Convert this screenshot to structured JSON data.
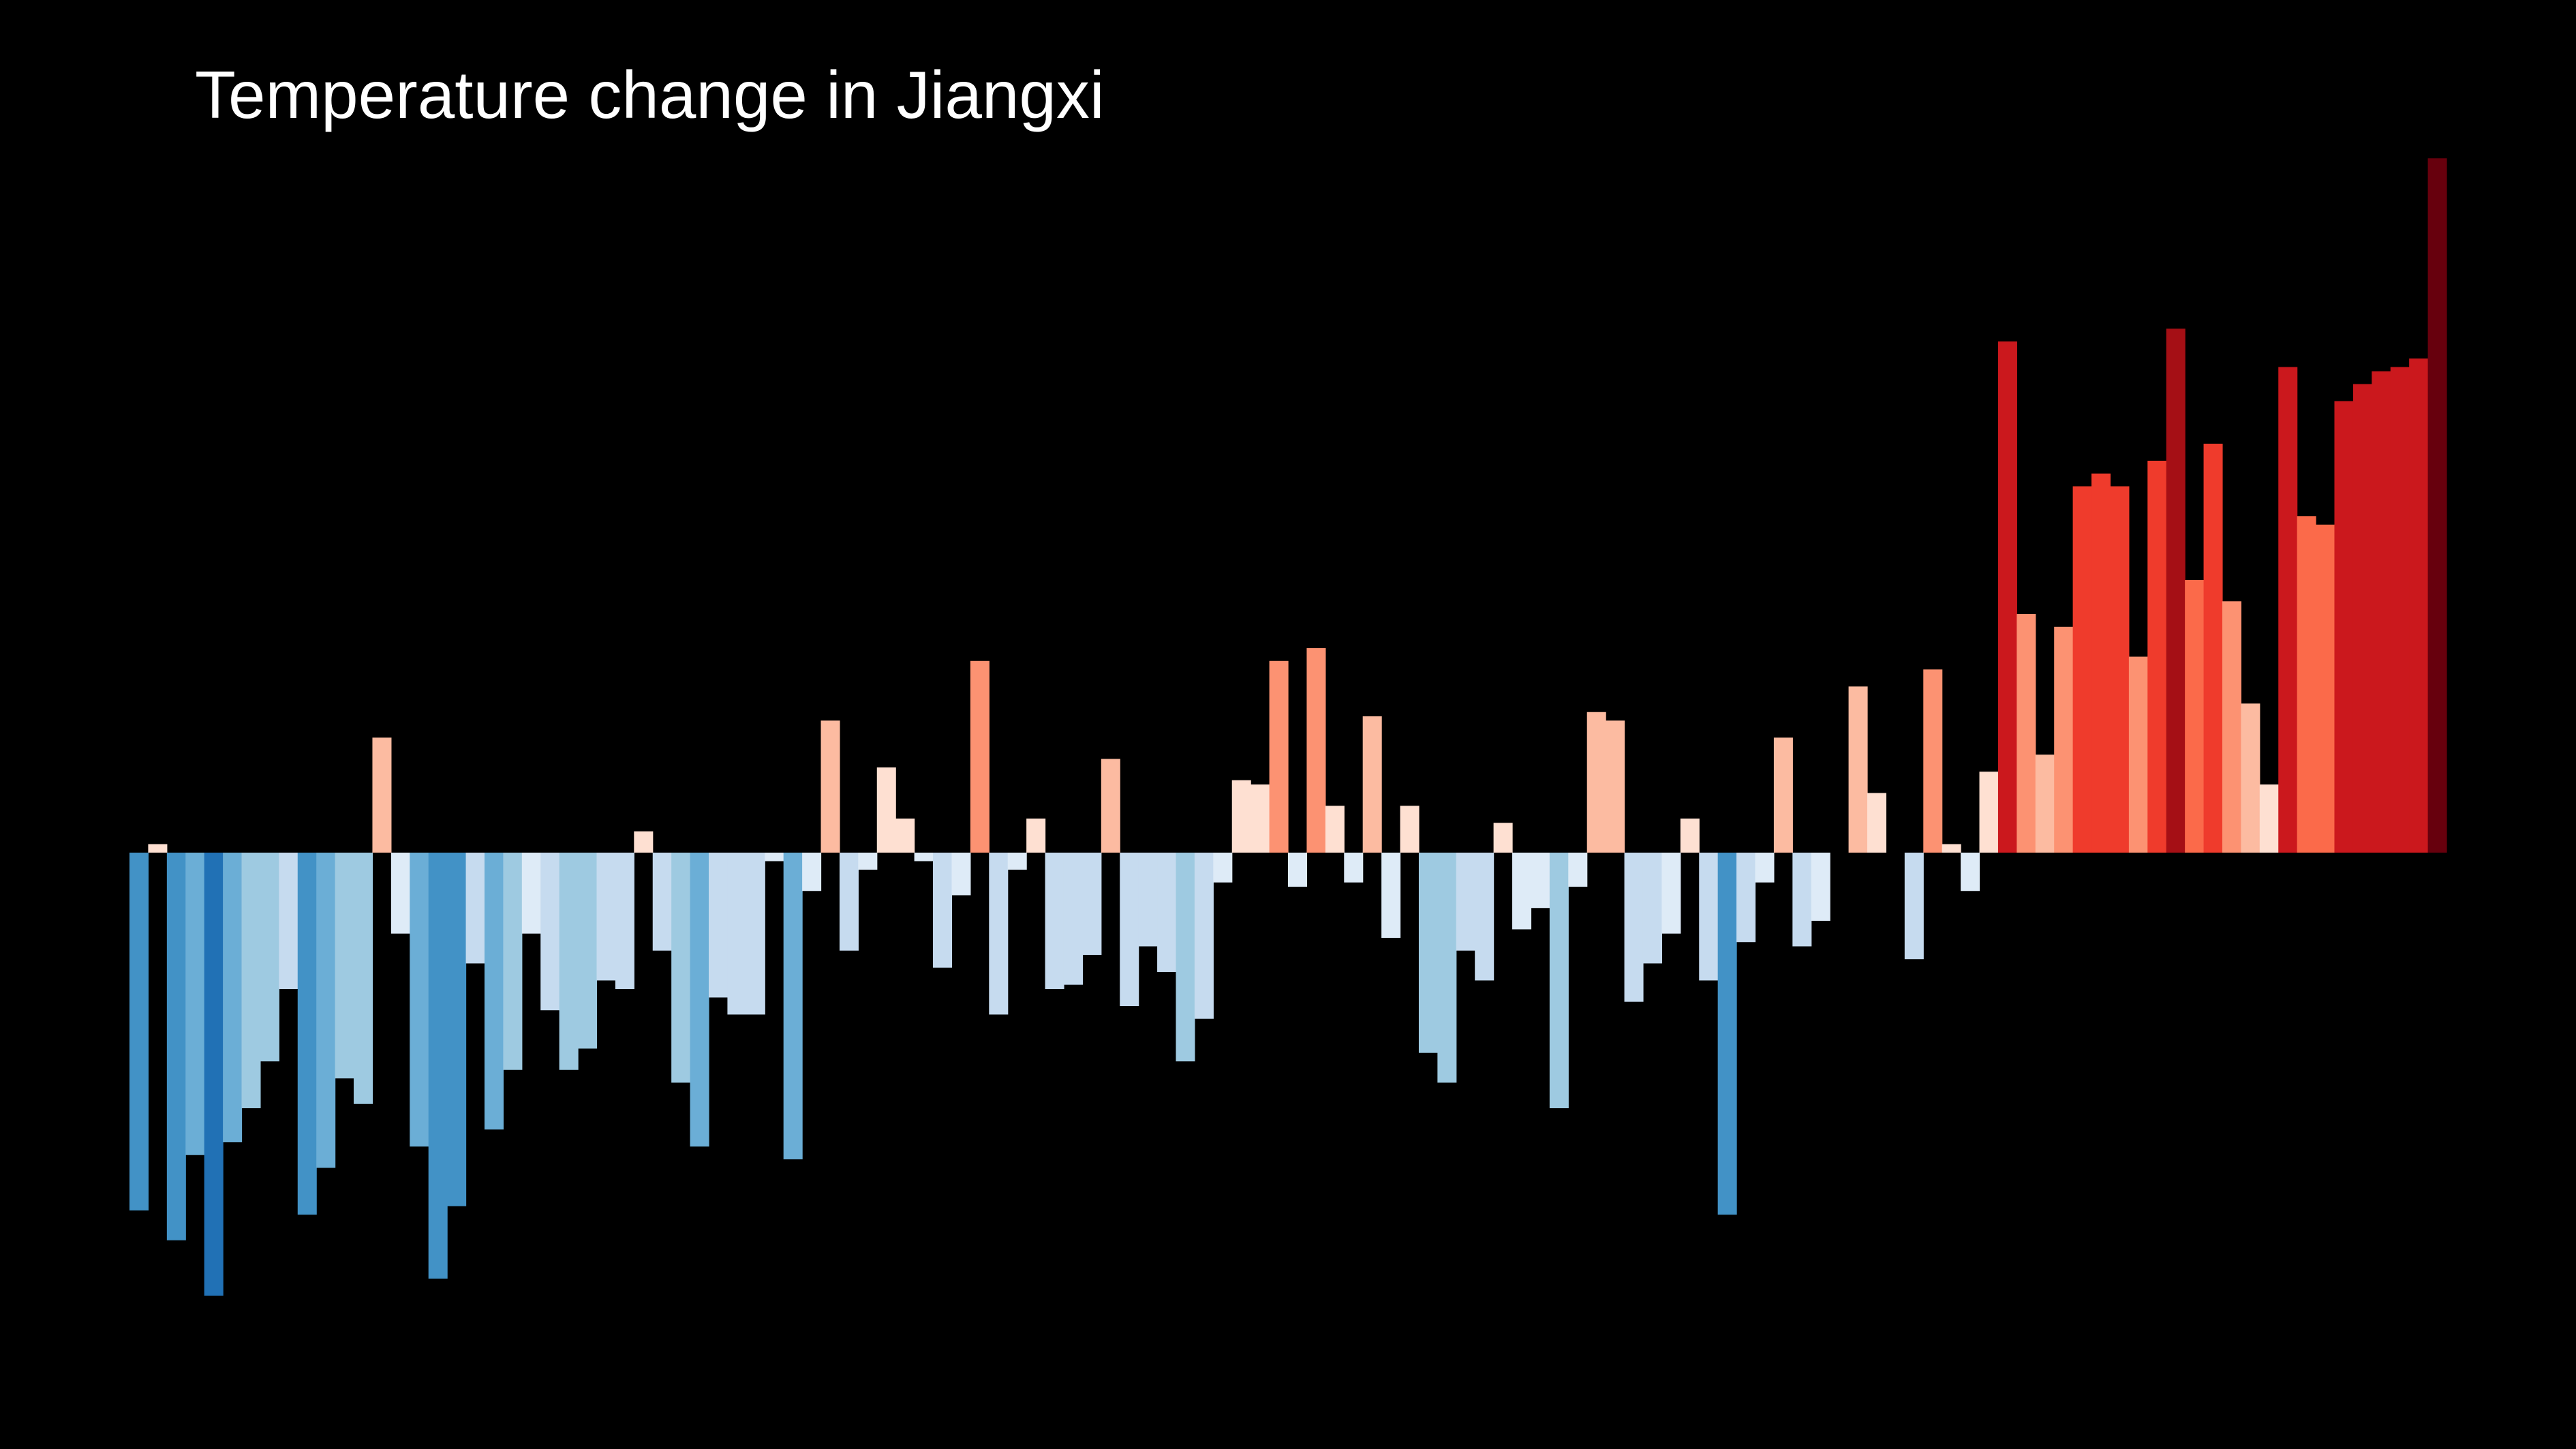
{
  "chart_data": {
    "type": "bar",
    "title": "Temperature change in Jiangxi",
    "xlabel": "",
    "ylabel": "",
    "values": [
      -0.84,
      0.02,
      -0.91,
      -0.71,
      -1.04,
      -0.68,
      -0.6,
      -0.49,
      -0.32,
      -0.85,
      -0.74,
      -0.53,
      -0.59,
      0.27,
      -0.19,
      -0.69,
      -1.0,
      -0.83,
      -0.26,
      -0.65,
      -0.51,
      -0.19,
      -0.37,
      -0.51,
      -0.46,
      -0.3,
      -0.32,
      0.05,
      -0.23,
      -0.54,
      -0.69,
      -0.34,
      -0.38,
      -0.38,
      -0.02,
      -0.72,
      -0.09,
      0.31,
      -0.23,
      -0.04,
      0.2,
      0.08,
      -0.02,
      -0.27,
      -0.1,
      0.45,
      -0.38,
      -0.04,
      0.08,
      -0.32,
      -0.31,
      -0.24,
      0.22,
      -0.36,
      -0.22,
      -0.28,
      -0.49,
      -0.39,
      -0.07,
      0.17,
      0.16,
      0.45,
      -0.08,
      0.48,
      0.11,
      -0.07,
      0.32,
      -0.2,
      0.11,
      -0.47,
      -0.54,
      -0.23,
      -0.3,
      0.07,
      -0.18,
      -0.13,
      -0.6,
      -0.08,
      0.33,
      0.31,
      -0.35,
      -0.26,
      -0.19,
      0.08,
      -0.3,
      -0.85,
      -0.21,
      -0.07,
      0.27,
      -0.22,
      -0.16,
      0.0,
      0.39,
      0.14,
      0.0,
      -0.25,
      0.43,
      0.02,
      -0.09,
      0.19,
      1.2,
      0.56,
      0.23,
      0.53,
      0.86,
      0.89,
      0.86,
      0.46,
      0.92,
      1.23,
      0.64,
      0.96,
      0.59,
      0.35,
      0.16,
      1.14,
      0.79,
      0.77,
      1.06,
      1.1,
      1.13,
      1.14,
      1.16,
      1.63
    ],
    "colors": {
      "darkest_blue": "#08306b",
      "dark_blue": "#08519c",
      "mid_blue": "#2171b5",
      "blue": "#4292c6",
      "light_blue": "#6baed6",
      "pale_blue": "#9ecae1",
      "palest_blue": "#c6dbef",
      "faint_blue": "#deebf7",
      "faint_red": "#fee0d2",
      "palest_red": "#fcbba1",
      "pale_red": "#fc9272",
      "light_red": "#fb6a4a",
      "red": "#ef3b2c",
      "mid_red": "#cb181d",
      "dark_red": "#a50f15",
      "darkest_red": "#67000d"
    },
    "background": "#000000",
    "grid": false,
    "legend": "none"
  }
}
